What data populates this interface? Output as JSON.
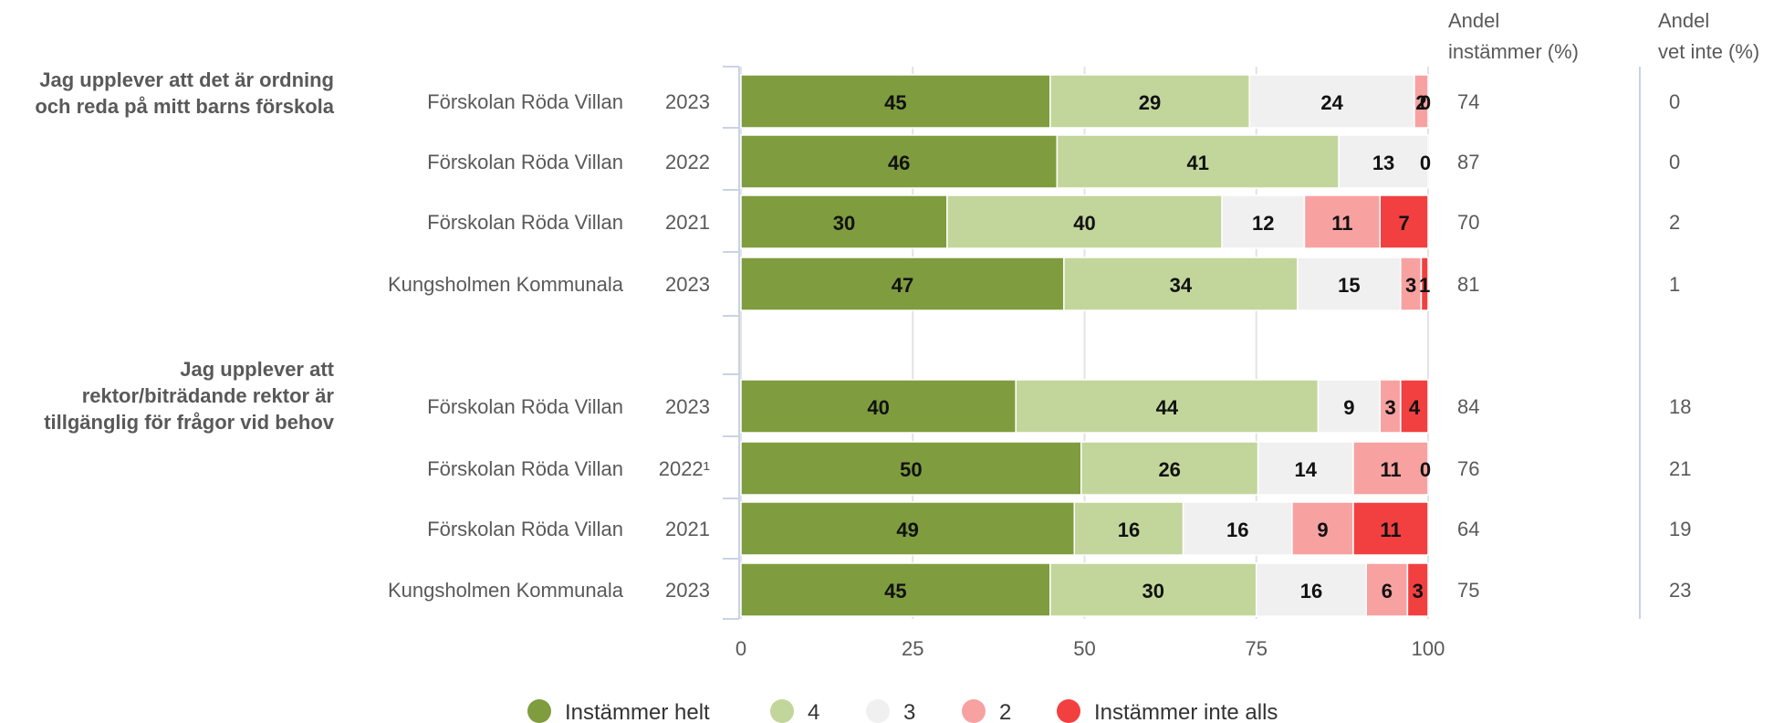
{
  "chart_data": {
    "type": "bar",
    "orientation": "horizontal",
    "stacked": true,
    "xlim": [
      0,
      100
    ],
    "x_ticks": [
      "0",
      "25",
      "50",
      "75",
      "100"
    ],
    "grid": true,
    "legend_position": "bottom",
    "series": [
      {
        "name": "Instämmer helt",
        "color": "#7f9c3f"
      },
      {
        "name": "4",
        "color": "#c2d69b"
      },
      {
        "name": "3",
        "color": "#f0f0f0"
      },
      {
        "name": "2",
        "color": "#f8a1a1"
      },
      {
        "name": "Instämmer inte alls",
        "color": "#f24040"
      }
    ],
    "side_columns": [
      {
        "header_line1": "Andel",
        "header_line2": "instämmer (%)"
      },
      {
        "header_line1": "Andel",
        "header_line2": "vet inte (%)"
      }
    ],
    "groups": [
      {
        "question_lines": [
          "Jag upplever att det är ordning",
          "och reda på mitt barns förskola"
        ],
        "rows": [
          {
            "label": "Förskolan Röda Villan",
            "year": "2023",
            "values": [
              45,
              29,
              24,
              2,
              0
            ],
            "andel_instammer": "74",
            "andel_vet_inte": "0"
          },
          {
            "label": "Förskolan Röda Villan",
            "year": "2022",
            "values": [
              46,
              41,
              13,
              0,
              0
            ],
            "andel_instammer": "87",
            "andel_vet_inte": "0"
          },
          {
            "label": "Förskolan Röda Villan",
            "year": "2021",
            "values": [
              30,
              40,
              12,
              11,
              7
            ],
            "andel_instammer": "70",
            "andel_vet_inte": "2"
          },
          {
            "label": "Kungsholmen Kommunala",
            "year": "2023",
            "values": [
              47,
              34,
              15,
              3,
              1
            ],
            "andel_instammer": "81",
            "andel_vet_inte": "1"
          }
        ]
      },
      {
        "question_lines": [
          "Jag upplever att",
          "rektor/biträdande rektor är",
          "tillgänglig för frågor vid behov"
        ],
        "rows": [
          {
            "label": "Förskolan Röda Villan",
            "year": "2023",
            "values": [
              40,
              44,
              9,
              3,
              4
            ],
            "andel_instammer": "84",
            "andel_vet_inte": "18"
          },
          {
            "label": "Förskolan Röda Villan",
            "year": "2022¹",
            "values": [
              50,
              26,
              14,
              11,
              0
            ],
            "andel_instammer": "76",
            "andel_vet_inte": "21"
          },
          {
            "label": "Förskolan Röda Villan",
            "year": "2021",
            "values": [
              49,
              16,
              16,
              9,
              11
            ],
            "andel_instammer": "64",
            "andel_vet_inte": "19"
          },
          {
            "label": "Kungsholmen Kommunala",
            "year": "2023",
            "values": [
              45,
              30,
              16,
              6,
              3
            ],
            "andel_instammer": "75",
            "andel_vet_inte": "23"
          }
        ]
      }
    ]
  }
}
